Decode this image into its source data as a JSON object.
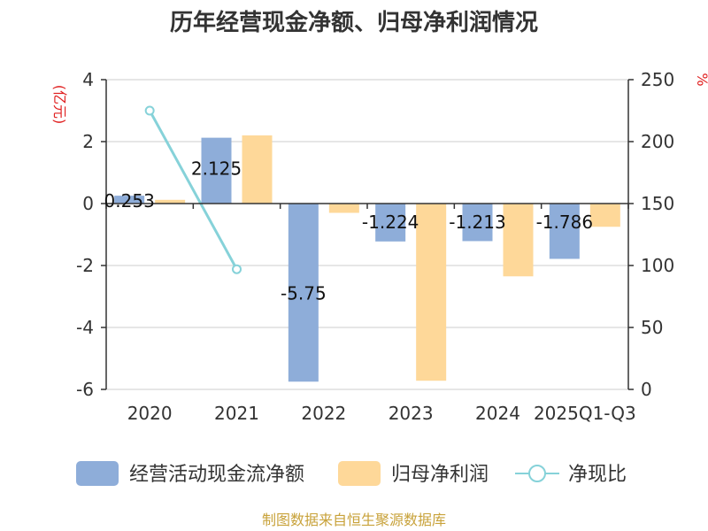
{
  "chart_data": {
    "type": "bar+line",
    "title": "历年经营现金净额、归母净利润情况",
    "categories": [
      "2020",
      "2021",
      "2022",
      "2023",
      "2024",
      "2025Q1-Q3"
    ],
    "series": [
      {
        "name": "经营活动现金流净额",
        "type": "bar",
        "axis": "left",
        "color": "#8eadd9",
        "values": [
          0.253,
          2.125,
          -5.75,
          -1.224,
          -1.213,
          -1.786
        ],
        "labels": [
          "0.253",
          "2.125",
          "-5.75",
          "-1.224",
          "-1.213",
          "-1.786"
        ]
      },
      {
        "name": "归母净利润",
        "type": "bar",
        "axis": "left",
        "color": "#fed899",
        "values": [
          0.12,
          2.2,
          -0.3,
          -5.72,
          -2.35,
          -0.75
        ]
      },
      {
        "name": "净现比",
        "type": "line",
        "axis": "right",
        "color": "#86d2d9",
        "values": [
          225,
          97,
          null,
          null,
          null,
          null
        ]
      }
    ],
    "y_left": {
      "label": "(亿元)",
      "min": -6,
      "max": 4,
      "ticks": [
        "4",
        "2",
        "0",
        "-2",
        "-4",
        "-6"
      ]
    },
    "y_right": {
      "label": "%",
      "min": 0,
      "max": 250,
      "ticks": [
        "250",
        "200",
        "150",
        "100",
        "50",
        "0"
      ]
    },
    "grid": true,
    "legend_position": "bottom"
  },
  "source": "制图数据来自恒生聚源数据库"
}
